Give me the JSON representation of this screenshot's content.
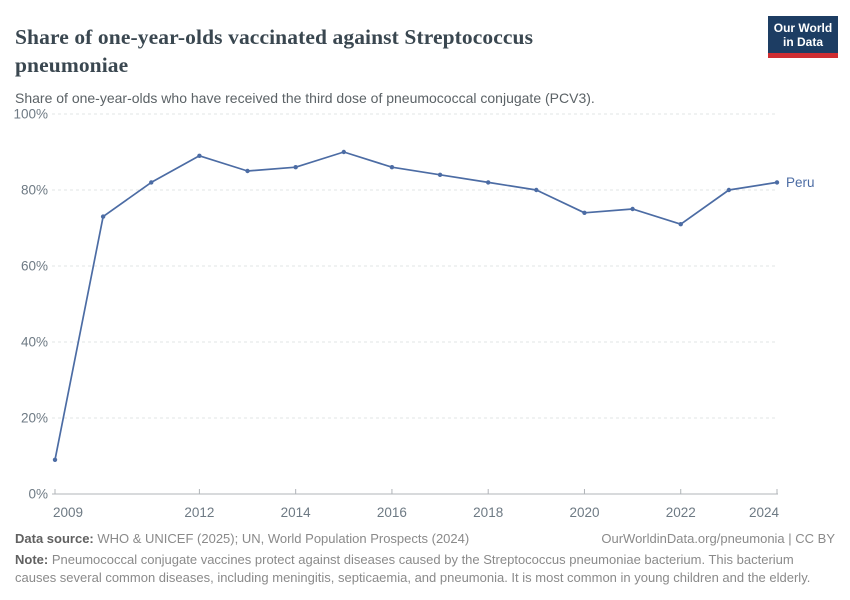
{
  "logo": {
    "line1": "Our World",
    "line2": "in Data",
    "bg_color": "#1d3d63",
    "stripe_color": "#cf2d32"
  },
  "chart_data": {
    "type": "line",
    "title": "Share of one-year-olds vaccinated against Streptococcus pneumoniae",
    "subtitle": "Share of one-year-olds who have received the third dose of pneumococcal conjugate (PCV3).",
    "x": [
      2009,
      2010,
      2011,
      2012,
      2013,
      2014,
      2015,
      2016,
      2017,
      2018,
      2019,
      2020,
      2021,
      2022,
      2023,
      2024
    ],
    "series": [
      {
        "name": "Peru",
        "color": "#4C6CA4",
        "values": [
          9,
          73,
          82,
          89,
          85,
          86,
          90,
          86,
          84,
          82,
          80,
          74,
          75,
          71,
          80,
          82
        ]
      }
    ],
    "xlabel": "",
    "ylabel": "",
    "ylim": [
      0,
      100
    ],
    "y_ticks": [
      0,
      20,
      40,
      60,
      80,
      100
    ],
    "y_tick_suffix": "%",
    "x_ticks": [
      2009,
      2012,
      2014,
      2016,
      2018,
      2020,
      2022,
      2024
    ],
    "grid": "horizontal-dashed",
    "legend_position": "end-of-line-label",
    "grid_color": "#e2e4e6",
    "axis_color": "#b0b4b8",
    "tick_label_color": "#6e7a84"
  },
  "footer": {
    "datasource_label": "Data source:",
    "datasource_text": " WHO & UNICEF (2025); UN, World Population Prospects (2024)",
    "rights": "OurWorldinData.org/pneumonia | CC BY",
    "note_label": "Note:",
    "note_text": " Pneumococcal conjugate vaccines protect against diseases caused by the Streptococcus pneumoniae bacterium. This bacterium causes several common diseases, including meningitis, septicaemia, and pneumonia. It is most common in young children and the elderly."
  }
}
